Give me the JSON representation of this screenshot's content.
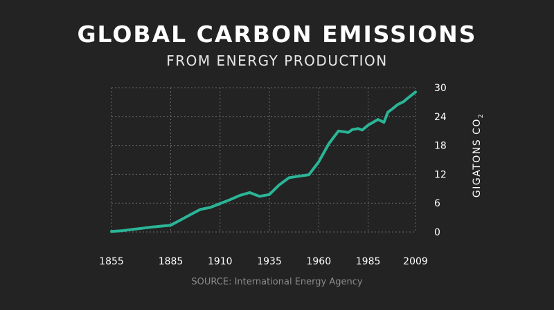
{
  "chart_data": {
    "type": "line",
    "title": "GLOBAL CARBON EMISSIONS",
    "subtitle": "FROM ENERGY PRODUCTION",
    "source": "SOURCE: International Energy Agency",
    "ylabel": "GIGATONS CO",
    "ylabel_subscript": "2",
    "xlim": [
      1855,
      2009
    ],
    "ylim": [
      0,
      30
    ],
    "x_ticks": [
      "1855",
      "1885",
      "1910",
      "1935",
      "1960",
      "1985",
      "2009"
    ],
    "y_ticks": [
      "0",
      "6",
      "12",
      "18",
      "24",
      "30"
    ],
    "grid": true,
    "line_color": "#2ab597",
    "series": [
      {
        "x": [
          1855,
          1860,
          1865,
          1870,
          1875,
          1880,
          1885,
          1890,
          1895,
          1900,
          1905,
          1910,
          1915,
          1920,
          1925,
          1930,
          1935,
          1940,
          1945,
          1950,
          1955,
          1960,
          1965,
          1970,
          1975,
          1977,
          1980,
          1982,
          1985,
          1990,
          1993,
          1995,
          1997,
          2000,
          2003,
          2005,
          2009
        ],
        "y": [
          0.1,
          0.25,
          0.5,
          0.75,
          1.0,
          1.2,
          1.4,
          2.5,
          3.6,
          4.7,
          5.1,
          5.9,
          6.7,
          7.6,
          8.2,
          7.4,
          7.8,
          9.8,
          11.3,
          11.6,
          11.9,
          14.6,
          18.3,
          21.0,
          20.7,
          21.3,
          21.5,
          21.2,
          22.2,
          23.4,
          22.8,
          24.9,
          25.5,
          26.5,
          27.1,
          27.8,
          29.1
        ]
      }
    ]
  }
}
